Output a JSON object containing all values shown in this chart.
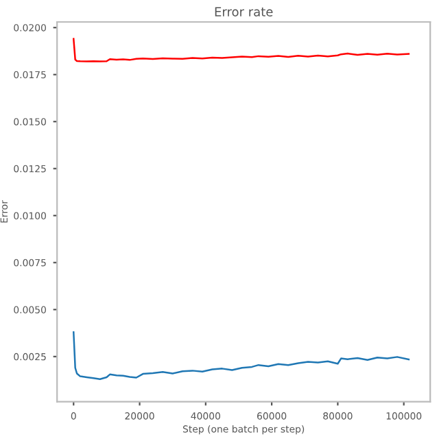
{
  "chart_data": {
    "type": "line",
    "title": "Error rate",
    "xlabel": "Step (one batch per step)",
    "ylabel": "Error",
    "x": [
      0,
      500,
      1000,
      2000,
      4000,
      6000,
      8000,
      10000,
      11000,
      13000,
      15000,
      17000,
      19000,
      21000,
      24000,
      27000,
      30000,
      33000,
      36000,
      39000,
      42000,
      45000,
      48000,
      51000,
      54000,
      56000,
      59000,
      62000,
      65000,
      68000,
      71000,
      74000,
      77000,
      80000,
      81000,
      83000,
      86000,
      89000,
      92000,
      95000,
      98000,
      101500
    ],
    "series": [
      {
        "color": "#ff0000",
        "values": [
          0.0194,
          0.0183,
          0.01822,
          0.01821,
          0.0182,
          0.01821,
          0.0182,
          0.01821,
          0.01832,
          0.01829,
          0.01831,
          0.01828,
          0.01834,
          0.01836,
          0.01833,
          0.01837,
          0.01835,
          0.01834,
          0.01838,
          0.01836,
          0.0184,
          0.01838,
          0.01842,
          0.01846,
          0.01843,
          0.01848,
          0.01845,
          0.01849,
          0.01844,
          0.0185,
          0.01846,
          0.01851,
          0.01847,
          0.01852,
          0.01858,
          0.01862,
          0.01855,
          0.0186,
          0.01856,
          0.01861,
          0.01857,
          0.0186
        ]
      },
      {
        "color": "#1f77b4",
        "values": [
          0.0038,
          0.0019,
          0.0016,
          0.00145,
          0.0014,
          0.00135,
          0.0013,
          0.0014,
          0.00155,
          0.0015,
          0.00148,
          0.00142,
          0.00138,
          0.00158,
          0.00162,
          0.00168,
          0.0016,
          0.00172,
          0.00175,
          0.0017,
          0.00182,
          0.00186,
          0.00178,
          0.0019,
          0.00195,
          0.00205,
          0.00198,
          0.0021,
          0.00205,
          0.00215,
          0.00222,
          0.00218,
          0.00225,
          0.00212,
          0.0024,
          0.00236,
          0.00242,
          0.00232,
          0.00245,
          0.0024,
          0.00248,
          0.00235
        ]
      }
    ],
    "xlim": [
      -5000,
      108000
    ],
    "ylim": [
      0.0001,
      0.0203
    ],
    "xticks": [
      0,
      20000,
      40000,
      60000,
      80000,
      100000
    ],
    "yticks": [
      {
        "value": 0.0025,
        "label": "0.0025"
      },
      {
        "value": 0.005,
        "label": "0.0050"
      },
      {
        "value": 0.0075,
        "label": "0.0075"
      },
      {
        "value": 0.01,
        "label": "0.0100"
      },
      {
        "value": 0.0125,
        "label": "0.0125"
      },
      {
        "value": 0.015,
        "label": "0.0150"
      },
      {
        "value": 0.0175,
        "label": "0.0175"
      },
      {
        "value": 0.02,
        "label": "0.0200"
      }
    ],
    "grid": false,
    "marker": "none",
    "line_style": "solid"
  }
}
